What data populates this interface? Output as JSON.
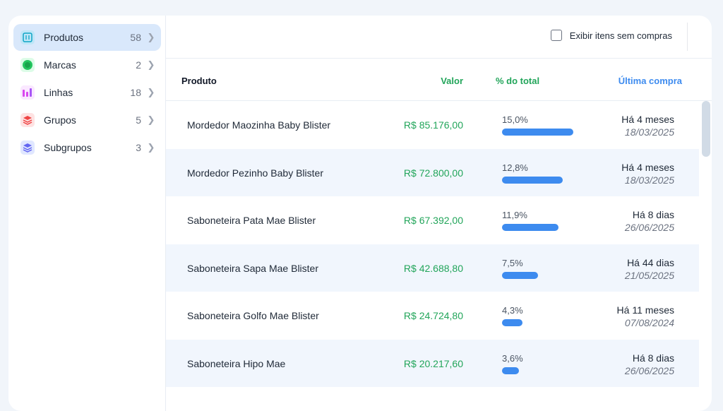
{
  "sidebar": {
    "items": [
      {
        "label": "Produtos",
        "count": "58",
        "icon": "package-icon",
        "color": "#38bdf8",
        "active": true
      },
      {
        "label": "Marcas",
        "count": "2",
        "icon": "brand-icon",
        "color": "#22c55e",
        "active": false
      },
      {
        "label": "Linhas",
        "count": "18",
        "icon": "product-line-icon",
        "color": "#d946ef",
        "active": false
      },
      {
        "label": "Grupos",
        "count": "5",
        "icon": "layers-icon",
        "color": "#ef4444",
        "active": false
      },
      {
        "label": "Subgrupos",
        "count": "3",
        "icon": "stack-icon",
        "color": "#6366f1",
        "active": false
      }
    ]
  },
  "toolbar": {
    "toggle_label": "Exibir itens sem compras"
  },
  "table": {
    "headers": {
      "produto": "Produto",
      "valor": "Valor",
      "pct": "% do total",
      "ultima": "Última compra"
    },
    "header_colors": {
      "valor": "#22a55a",
      "pct": "#22a55a",
      "ultima": "#3d8bef"
    },
    "rows": [
      {
        "produto": "Mordedor Maozinha Baby Blister",
        "valor": "R$ 85.176,00",
        "pct": "15,0%",
        "fraction": 0.15,
        "relativa": "Há 4 meses",
        "data": "18/03/2025"
      },
      {
        "produto": "Mordedor Pezinho Baby Blister",
        "valor": "R$ 72.800,00",
        "pct": "12,8%",
        "fraction": 0.128,
        "relativa": "Há 4 meses",
        "data": "18/03/2025"
      },
      {
        "produto": "Saboneteira Pata Mae Blister",
        "valor": "R$ 67.392,00",
        "pct": "11,9%",
        "fraction": 0.119,
        "relativa": "Há 8 dias",
        "data": "26/06/2025"
      },
      {
        "produto": "Saboneteira Sapa Mae Blister",
        "valor": "R$ 42.688,80",
        "pct": "7,5%",
        "fraction": 0.075,
        "relativa": "Há 44 dias",
        "data": "21/05/2025"
      },
      {
        "produto": "Saboneteira Golfo Mae Blister",
        "valor": "R$ 24.724,80",
        "pct": "4,3%",
        "fraction": 0.043,
        "relativa": "Há 11 meses",
        "data": "07/08/2024"
      },
      {
        "produto": "Saboneteira Hipo Mae",
        "valor": "R$ 20.217,60",
        "pct": "3,6%",
        "fraction": 0.036,
        "relativa": "Há 8 dias",
        "data": "26/06/2025"
      }
    ]
  },
  "colors": {
    "accent": "#3d8bef",
    "value_green": "#22a55a",
    "active_bg": "#d9e8fb"
  }
}
